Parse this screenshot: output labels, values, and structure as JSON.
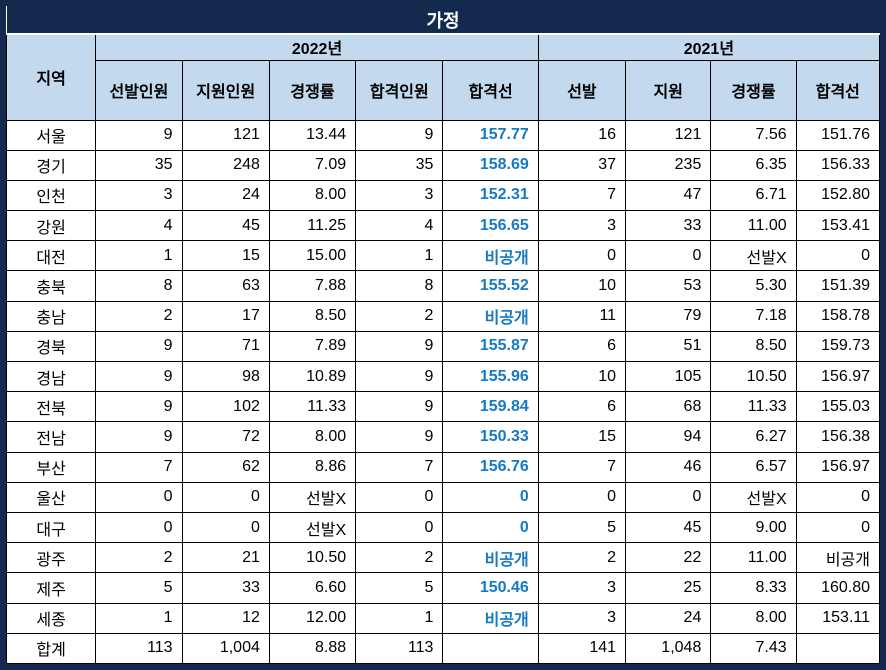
{
  "title": "가정",
  "colors": {
    "navy": "#13294E",
    "header_bg": "#C2D9EE",
    "accent_blue": "#1778C4",
    "grid": "#000000"
  },
  "header": {
    "region": "지역",
    "groups": [
      {
        "label": "2022년",
        "cols": [
          "선발인원",
          "지원인원",
          "경쟁률",
          "합격인원",
          "합격선"
        ]
      },
      {
        "label": "2021년",
        "cols": [
          "선발",
          "지원",
          "경쟁률",
          "합격선"
        ]
      }
    ]
  },
  "rows": [
    {
      "region": "서울",
      "y2022": [
        "9",
        "121",
        "13.44",
        "9",
        "157.77"
      ],
      "y2021": [
        "16",
        "121",
        "7.56",
        "151.76"
      ]
    },
    {
      "region": "경기",
      "y2022": [
        "35",
        "248",
        "7.09",
        "35",
        "158.69"
      ],
      "y2021": [
        "37",
        "235",
        "6.35",
        "156.33"
      ]
    },
    {
      "region": "인천",
      "y2022": [
        "3",
        "24",
        "8.00",
        "3",
        "152.31"
      ],
      "y2021": [
        "7",
        "47",
        "6.71",
        "152.80"
      ]
    },
    {
      "region": "강원",
      "y2022": [
        "4",
        "45",
        "11.25",
        "4",
        "156.65"
      ],
      "y2021": [
        "3",
        "33",
        "11.00",
        "153.41"
      ]
    },
    {
      "region": "대전",
      "y2022": [
        "1",
        "15",
        "15.00",
        "1",
        "비공개"
      ],
      "y2021": [
        "0",
        "0",
        "선발X",
        "0"
      ]
    },
    {
      "region": "충북",
      "y2022": [
        "8",
        "63",
        "7.88",
        "8",
        "155.52"
      ],
      "y2021": [
        "10",
        "53",
        "5.30",
        "151.39"
      ]
    },
    {
      "region": "충남",
      "y2022": [
        "2",
        "17",
        "8.50",
        "2",
        "비공개"
      ],
      "y2021": [
        "11",
        "79",
        "7.18",
        "158.78"
      ]
    },
    {
      "region": "경북",
      "y2022": [
        "9",
        "71",
        "7.89",
        "9",
        "155.87"
      ],
      "y2021": [
        "6",
        "51",
        "8.50",
        "159.73"
      ]
    },
    {
      "region": "경남",
      "y2022": [
        "9",
        "98",
        "10.89",
        "9",
        "155.96"
      ],
      "y2021": [
        "10",
        "105",
        "10.50",
        "156.97"
      ]
    },
    {
      "region": "전북",
      "y2022": [
        "9",
        "102",
        "11.33",
        "9",
        "159.84"
      ],
      "y2021": [
        "6",
        "68",
        "11.33",
        "155.03"
      ]
    },
    {
      "region": "전남",
      "y2022": [
        "9",
        "72",
        "8.00",
        "9",
        "150.33"
      ],
      "y2021": [
        "15",
        "94",
        "6.27",
        "156.38"
      ]
    },
    {
      "region": "부산",
      "y2022": [
        "7",
        "62",
        "8.86",
        "7",
        "156.76"
      ],
      "y2021": [
        "7",
        "46",
        "6.57",
        "156.97"
      ]
    },
    {
      "region": "울산",
      "y2022": [
        "0",
        "0",
        "선발X",
        "0",
        "0"
      ],
      "y2021": [
        "0",
        "0",
        "선발X",
        "0"
      ]
    },
    {
      "region": "대구",
      "y2022": [
        "0",
        "0",
        "선발X",
        "0",
        "0"
      ],
      "y2021": [
        "5",
        "45",
        "9.00",
        "0"
      ]
    },
    {
      "region": "광주",
      "y2022": [
        "2",
        "21",
        "10.50",
        "2",
        "비공개"
      ],
      "y2021": [
        "2",
        "22",
        "11.00",
        "비공개"
      ]
    },
    {
      "region": "제주",
      "y2022": [
        "5",
        "33",
        "6.60",
        "5",
        "150.46"
      ],
      "y2021": [
        "3",
        "25",
        "8.33",
        "160.80"
      ]
    },
    {
      "region": "세종",
      "y2022": [
        "1",
        "12",
        "12.00",
        "1",
        "비공개"
      ],
      "y2021": [
        "3",
        "24",
        "8.00",
        "153.11"
      ]
    },
    {
      "region": "합계",
      "y2022": [
        "113",
        "1,004",
        "8.88",
        "113",
        ""
      ],
      "y2021": [
        "141",
        "1,048",
        "7.43",
        ""
      ]
    }
  ]
}
